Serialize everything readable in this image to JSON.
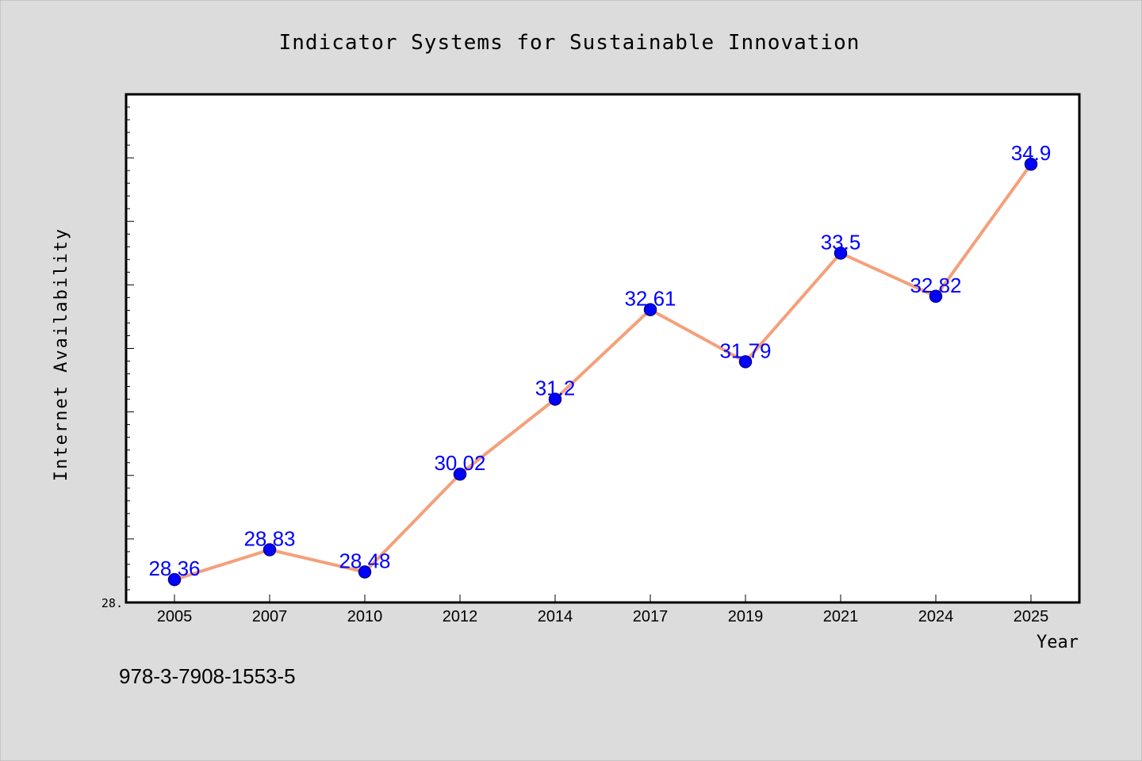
{
  "chart_data": {
    "type": "line",
    "title": "Indicator Systems for Sustainable Innovation",
    "xlabel": "Year",
    "ylabel": "Internet Availability",
    "categories": [
      "2005",
      "2007",
      "2010",
      "2012",
      "2014",
      "2017",
      "2019",
      "2021",
      "2024",
      "2025"
    ],
    "series": [
      {
        "values": [
          28.36,
          28.83,
          28.48,
          30.02,
          31.2,
          32.61,
          31.79,
          33.5,
          32.82,
          34.9
        ]
      }
    ],
    "data_labels": [
      "28.36",
      "28.83",
      "28.48",
      "30.02",
      "31.2",
      "32.61",
      "31.79",
      "33.5",
      "32.82",
      "34.9"
    ],
    "ylim": [
      28.0,
      36.0
    ],
    "y_tick_labels": [
      "28."
    ],
    "grid": false,
    "annotation": "978-3-7908-1553-5",
    "colors": {
      "line": "#f4a07a",
      "marker": "#0000ff",
      "marker_edge": "#00008b",
      "data_label": "#0000ff",
      "background": "#dcdcdc",
      "plot_bg": "#ffffff"
    }
  }
}
